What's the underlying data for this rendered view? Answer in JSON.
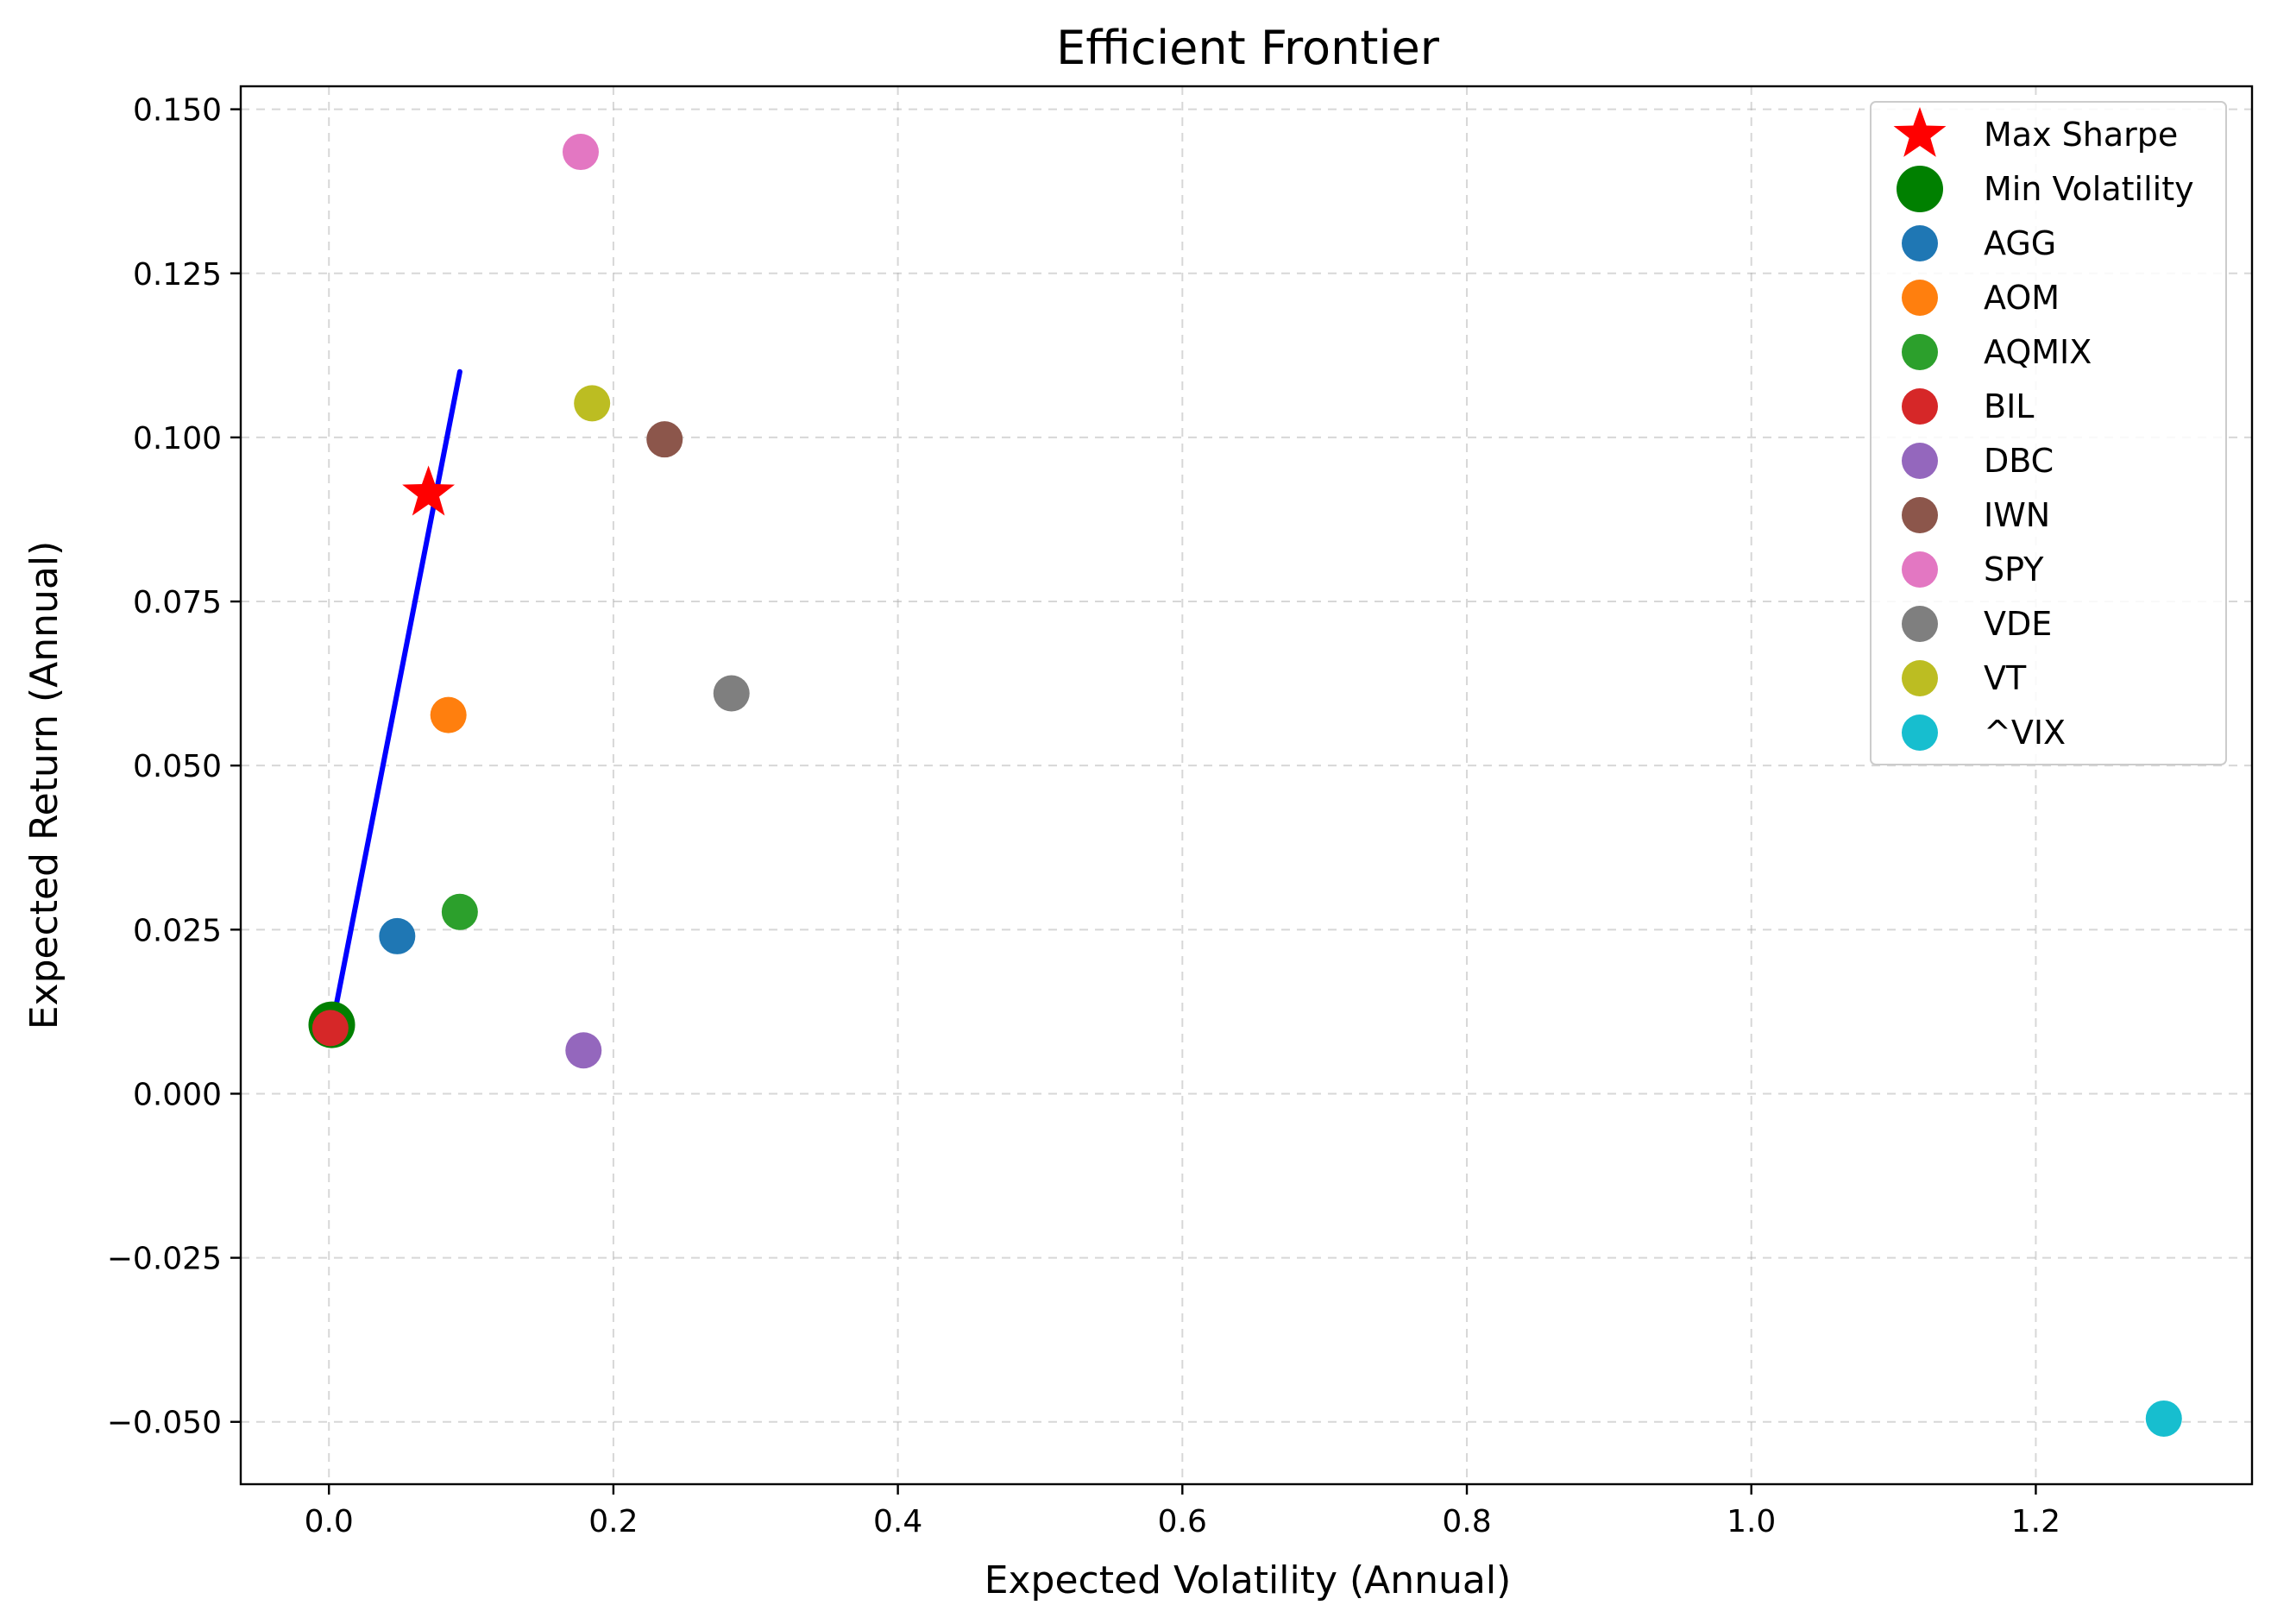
{
  "chart_data": {
    "type": "scatter",
    "title": "Efficient Frontier",
    "xlabel": "Expected Volatility (Annual)",
    "ylabel": "Expected Return (Annual)",
    "xlim": [
      -0.062,
      1.352
    ],
    "ylim": [
      -0.0595,
      0.1535
    ],
    "xticks": [
      0.0,
      0.2,
      0.4,
      0.6,
      0.8,
      1.0,
      1.2
    ],
    "xtick_labels": [
      "0.0",
      "0.2",
      "0.4",
      "0.6",
      "0.8",
      "1.0",
      "1.2"
    ],
    "yticks": [
      -0.05,
      -0.025,
      0.0,
      0.025,
      0.05,
      0.075,
      0.1,
      0.125,
      0.15
    ],
    "ytick_labels": [
      "−0.050",
      "−0.025",
      "0.000",
      "0.025",
      "0.050",
      "0.075",
      "0.100",
      "0.125",
      "0.150"
    ],
    "grid": true,
    "legend_position": "top-right",
    "frontier_line": {
      "color": "#0000ff",
      "x": [
        0.002,
        0.092
      ],
      "y": [
        0.01,
        0.11
      ]
    },
    "max_sharpe": {
      "name": "Max Sharpe",
      "x": 0.07,
      "y": 0.0915,
      "marker": "star",
      "color": "#ff0000"
    },
    "min_volatility": {
      "name": "Min Volatility",
      "x": 0.002,
      "y": 0.0105,
      "marker": "circle",
      "color": "#008000"
    },
    "assets": [
      {
        "name": "AGG",
        "x": 0.048,
        "y": 0.024,
        "color": "#1f77b4"
      },
      {
        "name": "AOM",
        "x": 0.084,
        "y": 0.0577,
        "color": "#ff7f0e"
      },
      {
        "name": "AQMIX",
        "x": 0.092,
        "y": 0.0277,
        "color": "#2ca02c"
      },
      {
        "name": "BIL",
        "x": 0.001,
        "y": 0.01,
        "color": "#d62728"
      },
      {
        "name": "DBC",
        "x": 0.179,
        "y": 0.0066,
        "color": "#9467bd"
      },
      {
        "name": "IWN",
        "x": 0.236,
        "y": 0.0997,
        "color": "#8c564b"
      },
      {
        "name": "SPY",
        "x": 0.177,
        "y": 0.1435,
        "color": "#e377c2"
      },
      {
        "name": "VDE",
        "x": 0.283,
        "y": 0.061,
        "color": "#7f7f7f"
      },
      {
        "name": "VT",
        "x": 0.185,
        "y": 0.1052,
        "color": "#bcbd22"
      },
      {
        "name": "^VIX",
        "x": 1.29,
        "y": -0.0495,
        "color": "#17becf"
      }
    ]
  }
}
